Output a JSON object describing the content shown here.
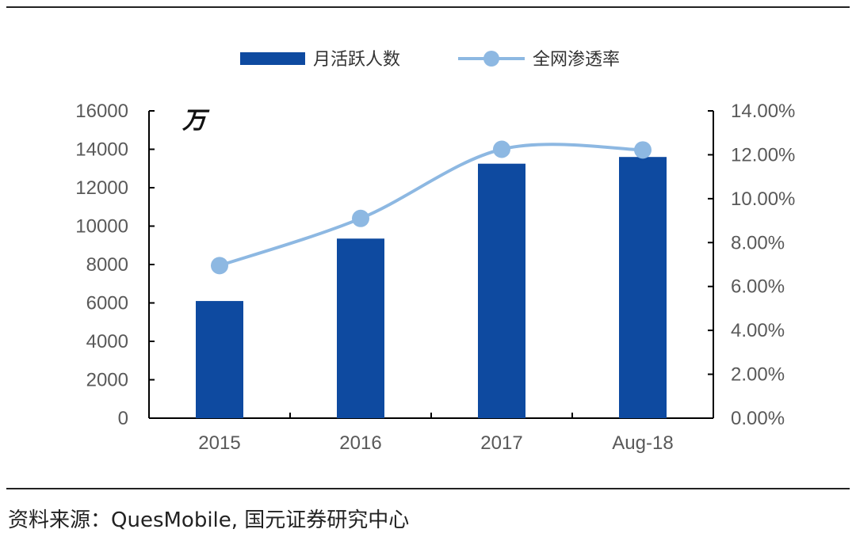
{
  "chart_data": {
    "type": "bar",
    "categories": [
      "2015",
      "2016",
      "2017",
      "Aug-18"
    ],
    "series": [
      {
        "name": "月活跃人数",
        "type": "bar",
        "axis": "left",
        "color": "#0E4AA0",
        "values": [
          6100,
          9350,
          13250,
          13600
        ]
      },
      {
        "name": "全网渗透率",
        "type": "line",
        "axis": "right",
        "color": "#8DB8E2",
        "values": [
          0.0695,
          0.091,
          0.1225,
          0.1222
        ]
      }
    ],
    "y_left": {
      "ylim": [
        0,
        16000
      ],
      "ticks": [
        "0",
        "2000",
        "4000",
        "6000",
        "8000",
        "10000",
        "12000",
        "14000",
        "16000"
      ],
      "unit_label": "万"
    },
    "y_right": {
      "ylim": [
        0,
        0.14
      ],
      "ticks": [
        "0.00%",
        "2.00%",
        "4.00%",
        "6.00%",
        "8.00%",
        "10.00%",
        "12.00%",
        "14.00%"
      ]
    },
    "legend_position": "top-center",
    "grid": false
  },
  "source_text": "资料来源：QuesMobile, 国元证券研究中心"
}
